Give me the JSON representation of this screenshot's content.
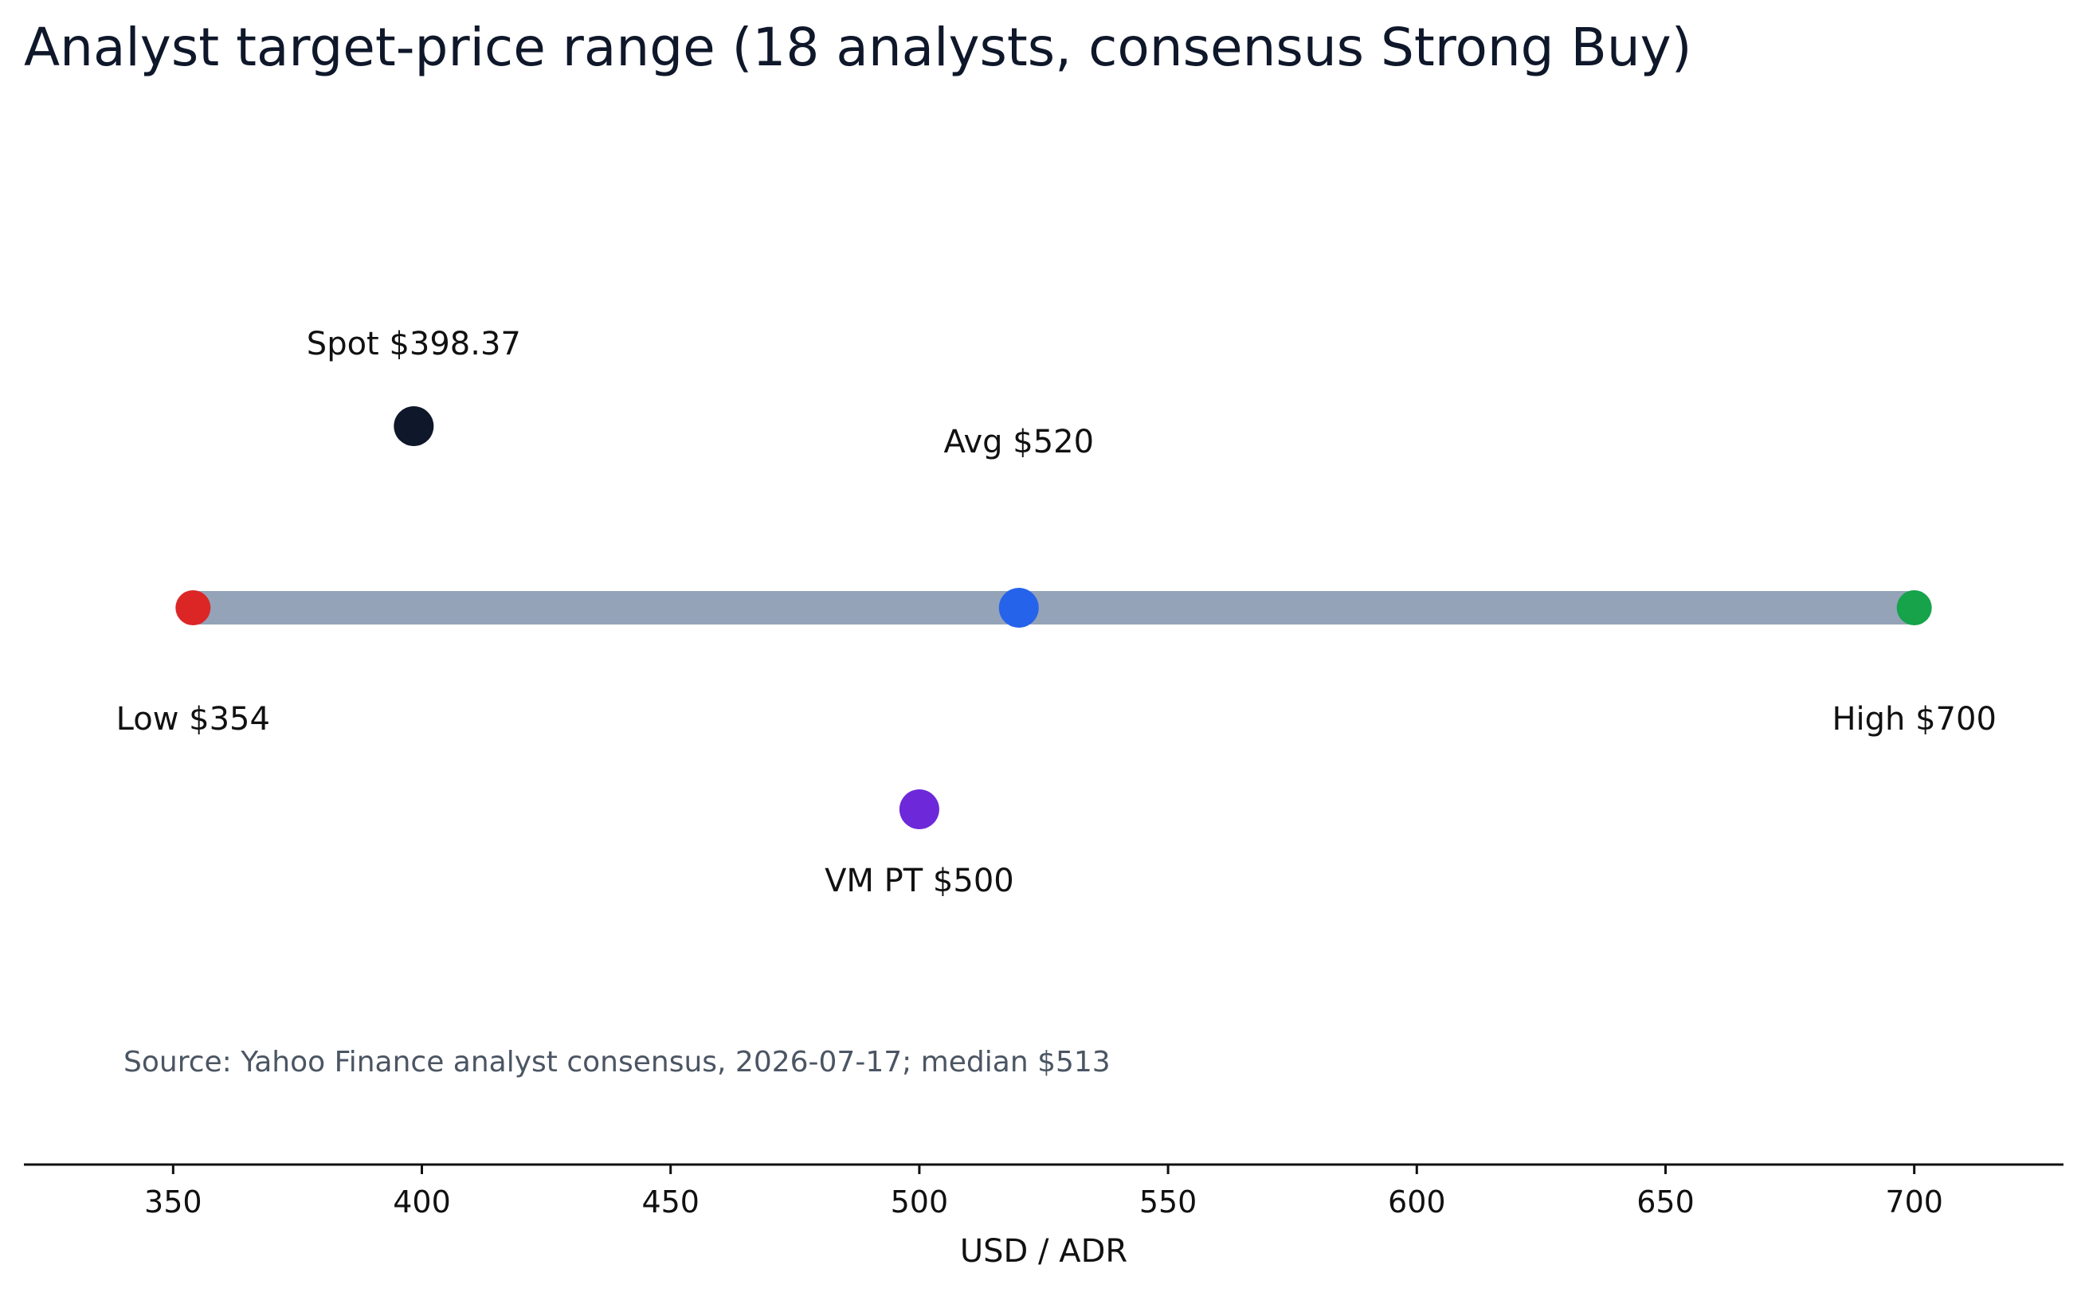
{
  "chart_data": {
    "type": "scatter",
    "title": "Analyst target-price range (18 analysts, consensus Strong Buy)",
    "xlabel": "USD / ADR",
    "ylabel": "",
    "xlim": [
      320,
      730
    ],
    "xticks": [
      350,
      400,
      450,
      500,
      550,
      600,
      650,
      700
    ],
    "grid": false,
    "range": {
      "low": 354,
      "high": 700,
      "color": "#94a3b8"
    },
    "points": [
      {
        "key": "low",
        "label": "Low $354",
        "x": 354,
        "color": "#dc2626",
        "row": "range",
        "label_side": "below"
      },
      {
        "key": "avg",
        "label": "Avg $520",
        "x": 520,
        "color": "#2563eb",
        "row": "range",
        "label_side": "above"
      },
      {
        "key": "high",
        "label": "High $700",
        "x": 700,
        "color": "#16a34a",
        "row": "range",
        "label_side": "below"
      },
      {
        "key": "spot",
        "label": "Spot $398.37",
        "x": 398.37,
        "color": "#0f172a",
        "row": "upper",
        "label_side": "above"
      },
      {
        "key": "vm",
        "label": "VM PT $500",
        "x": 500,
        "color": "#6d28d9",
        "row": "lower",
        "label_side": "below"
      }
    ],
    "source_note": "Source: Yahoo Finance analyst consensus, 2026-07-17; median $513"
  }
}
